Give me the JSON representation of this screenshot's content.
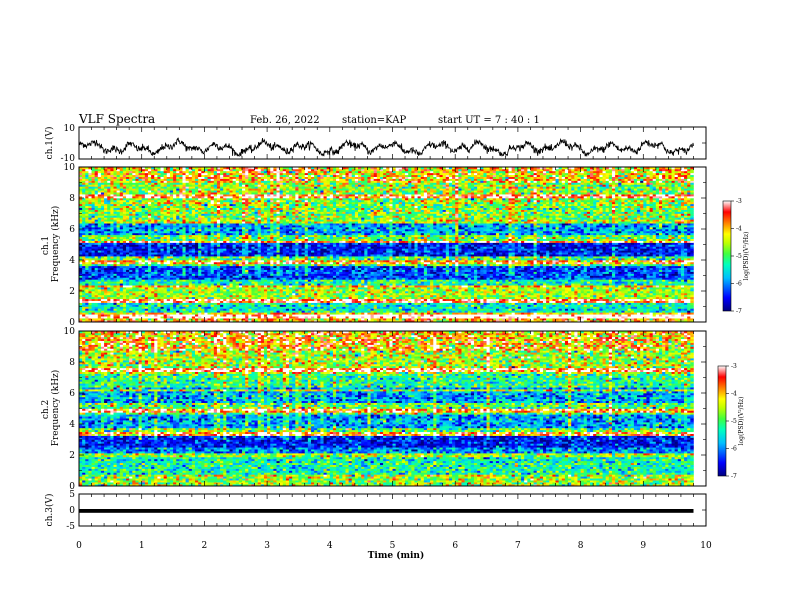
{
  "header": {
    "title": "VLF Spectra",
    "date": "Feb. 26, 2022",
    "station": "station=KAP",
    "start_ut": "start  UT =   7 : 40 : 1"
  },
  "chart_data": [
    {
      "type": "line",
      "name": "ch1-waveform",
      "ylabel": "ch.1(V)",
      "ylim": [
        -10,
        10
      ],
      "y_ticks": [
        "10",
        "-10"
      ],
      "x_range_min": [
        0,
        9.8
      ],
      "envelope_min_V": [
        -8,
        5
      ],
      "line_color": "#000000"
    },
    {
      "type": "heatmap",
      "name": "ch1-spectrogram",
      "ylabel": "ch.1\nFrequency (kHz)",
      "xlim": [
        0,
        10
      ],
      "ylim": [
        0,
        10
      ],
      "y_ticks": [
        "0",
        "2",
        "4",
        "6",
        "8",
        "10"
      ],
      "data_x_extent_min": [
        0,
        9.8
      ],
      "log_psd_range": [
        -7,
        -3
      ],
      "bands": [
        {
          "f": [
            9.0,
            10.0
          ],
          "v": -4.1,
          "sd": 0.7
        },
        {
          "f": [
            7.6,
            9.0
          ],
          "v": -4.7,
          "sd": 0.6
        },
        {
          "f": [
            6.6,
            7.6
          ],
          "v": -4.8,
          "sd": 0.6
        },
        {
          "f": [
            5.6,
            6.6
          ],
          "v": -5.9,
          "sd": 0.5
        },
        {
          "f": [
            5.1,
            5.6
          ],
          "v": -4.9,
          "sd": 0.6
        },
        {
          "f": [
            4.2,
            5.1
          ],
          "v": -6.5,
          "sd": 0.4
        },
        {
          "f": [
            3.6,
            4.2
          ],
          "v": -5.0,
          "sd": 0.6
        },
        {
          "f": [
            2.8,
            3.6
          ],
          "v": -6.3,
          "sd": 0.4
        },
        {
          "f": [
            2.3,
            2.8
          ],
          "v": -5.3,
          "sd": 0.5
        },
        {
          "f": [
            1.3,
            2.3
          ],
          "v": -4.6,
          "sd": 0.5
        },
        {
          "f": [
            0.6,
            1.3
          ],
          "v": -5.4,
          "sd": 0.5
        },
        {
          "f": [
            0.0,
            0.6
          ],
          "v": -4.0,
          "sd": 0.6
        }
      ],
      "lines_kHz": [
        0.4,
        1.4,
        2.3,
        3.9,
        5.2,
        6.5,
        8.1
      ]
    },
    {
      "type": "heatmap",
      "name": "ch2-spectrogram",
      "ylabel": "ch.2\nFrequency (kHz)",
      "xlim": [
        0,
        10
      ],
      "ylim": [
        0,
        10
      ],
      "y_ticks": [
        "0",
        "2",
        "4",
        "6",
        "8",
        "10"
      ],
      "data_x_extent_min": [
        0,
        9.8
      ],
      "log_psd_range": [
        -7,
        -3
      ],
      "bands": [
        {
          "f": [
            8.8,
            10.0
          ],
          "v": -4.0,
          "sd": 0.7
        },
        {
          "f": [
            7.2,
            8.8
          ],
          "v": -4.6,
          "sd": 0.6
        },
        {
          "f": [
            6.4,
            7.2
          ],
          "v": -5.2,
          "sd": 0.5
        },
        {
          "f": [
            5.4,
            6.4
          ],
          "v": -5.9,
          "sd": 0.5
        },
        {
          "f": [
            4.6,
            5.4
          ],
          "v": -5.0,
          "sd": 0.6
        },
        {
          "f": [
            3.8,
            4.6
          ],
          "v": -5.9,
          "sd": 0.5
        },
        {
          "f": [
            3.3,
            3.8
          ],
          "v": -5.0,
          "sd": 0.6
        },
        {
          "f": [
            2.5,
            3.3
          ],
          "v": -6.5,
          "sd": 0.4
        },
        {
          "f": [
            1.9,
            2.5
          ],
          "v": -6.0,
          "sd": 0.5
        },
        {
          "f": [
            0.8,
            1.9
          ],
          "v": -5.3,
          "sd": 0.5
        },
        {
          "f": [
            0.0,
            0.8
          ],
          "v": -4.6,
          "sd": 0.6
        }
      ],
      "lines_kHz": [
        2.0,
        3.4,
        4.9,
        6.2,
        7.5
      ]
    },
    {
      "type": "line",
      "name": "ch3-signal",
      "ylabel": "ch.3(V)",
      "ylim": [
        -5,
        5
      ],
      "y_ticks": [
        "5",
        "0",
        "-5"
      ],
      "value_V": -0.3,
      "thickness_V": 1.2,
      "line_color": "#000000"
    }
  ],
  "x_axis": {
    "label": "Time  (min)",
    "ticks": [
      "0",
      "1",
      "2",
      "3",
      "4",
      "5",
      "6",
      "7",
      "8",
      "9",
      "10"
    ],
    "range": [
      0,
      10
    ]
  },
  "colorbars": [
    {
      "name": "ch1-colorbar",
      "label": "log(PSD)(V²/Hz)",
      "tick_labels": [
        "-3",
        "-4",
        "-5",
        "-6",
        "-7"
      ],
      "range": [
        -7,
        -3
      ]
    },
    {
      "name": "ch2-colorbar",
      "label": "log(PSD)(V²/Hz)",
      "tick_labels": [
        "-3",
        "-4",
        "-5",
        "-6",
        "-7"
      ],
      "range": [
        -7,
        -3
      ]
    }
  ],
  "colors": {
    "colormap": [
      "#00007f",
      "#0000ff",
      "#00bfff",
      "#00ffbf",
      "#40ff40",
      "#bfff00",
      "#ffff00",
      "#ff8000",
      "#ff0000",
      "#ffffff"
    ],
    "axis": "#000000"
  }
}
